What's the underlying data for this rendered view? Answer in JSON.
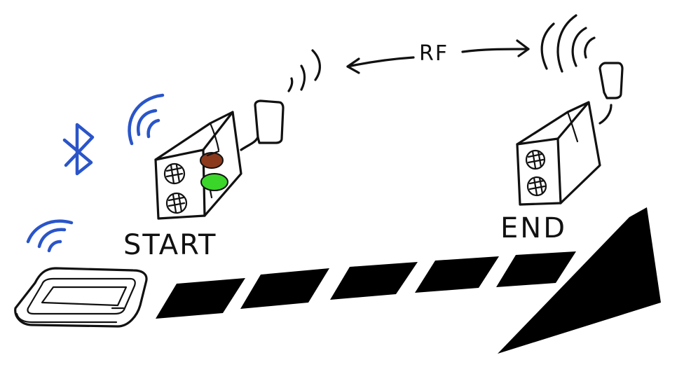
{
  "labels": {
    "start": "START",
    "end": "END",
    "rf": "RF"
  },
  "colors": {
    "ink": "#111111",
    "bluetooth": "#2a55c9",
    "light_red": "#8b3a1e",
    "light_green": "#3bd62a",
    "track": "#000000"
  },
  "icons": [
    "bluetooth-icon",
    "wifi-signal-icon",
    "rf-signal-icon",
    "double-arrow-icon",
    "traffic-light-icon",
    "speaker-grille-icon",
    "antenna-icon",
    "smartphone-icon"
  ]
}
